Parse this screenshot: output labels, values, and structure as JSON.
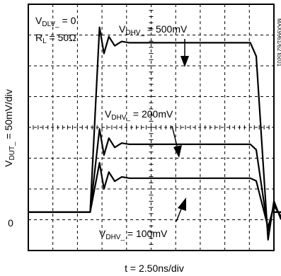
{
  "chart_data": {
    "type": "line",
    "conditions": {
      "vdlv": {
        "main": "V",
        "sub": "DLV_",
        "rest": " = 0"
      },
      "rl": {
        "main": "R",
        "sub": "L",
        "rest": " = 50Ω"
      }
    },
    "ylabel": {
      "main": "V",
      "sub": "DUT_",
      "rest": " = 50mV/div"
    },
    "xlabel": "t = 2.50ns/div",
    "zero_label": "0",
    "figure_id": "MAX9961/62 toc01",
    "grid": true,
    "divisions": {
      "x": 10,
      "y": 8
    },
    "zero_division_from_top": 6.75,
    "y_per_div_mV": 50,
    "x_per_div_ns": 2.5,
    "series": [
      {
        "name": "500mV",
        "annotation": {
          "main": "V",
          "sub": "DHV_",
          "rest": " = 500mV"
        },
        "rise_ns": 6.9,
        "fall_ns": 23.4,
        "level_mV": 275,
        "overshoot_mV": 300,
        "undershoot_mV": -45
      },
      {
        "name": "200mV",
        "annotation": {
          "main": "V",
          "sub": "DHV_",
          "rest": " = 200mV"
        },
        "rise_ns": 6.9,
        "fall_ns": 23.4,
        "level_mV": 110,
        "overshoot_mV": 135,
        "undershoot_mV": -30
      },
      {
        "name": "100mV",
        "annotation": {
          "main": "V",
          "sub": "DHV_",
          "rest": " = 100mV"
        },
        "rise_ns": 6.9,
        "fall_ns": 23.4,
        "level_mV": 55,
        "overshoot_mV": 80,
        "undershoot_mV": -25
      }
    ]
  }
}
